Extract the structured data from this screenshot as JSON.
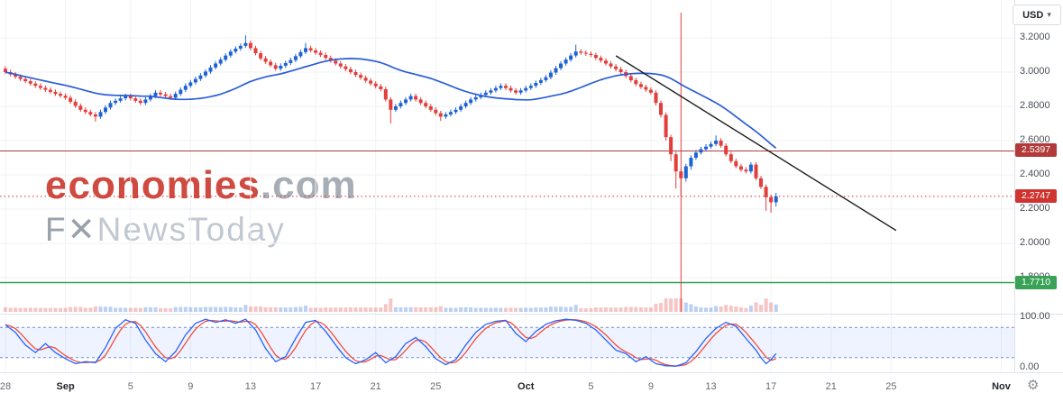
{
  "toolbar": {
    "currency_label": "USD",
    "caret_glyph": "▾",
    "settings_glyph": "⚙"
  },
  "watermark": {
    "brand": "economies",
    "domain": ".com",
    "tagline_f": "F",
    "tagline_x": "✕",
    "tagline_rest": "NewsToday"
  },
  "chart_data": {
    "type": "candlestick",
    "ylim": [
      1.6,
      3.42
    ],
    "grid": true,
    "colors": {
      "up": "#1e63d4",
      "down": "#e23e3c",
      "ma": "#2b5dd7",
      "trend": "#1c1c1c",
      "grid": "#eff2f6"
    },
    "price_ticks": [
      {
        "label": "3.2000",
        "price": 3.2
      },
      {
        "label": "3.0000",
        "price": 3.0
      },
      {
        "label": "2.8000",
        "price": 2.8
      },
      {
        "label": "2.6000",
        "price": 2.6
      },
      {
        "label": "2.4000",
        "price": 2.4
      },
      {
        "label": "2.2000",
        "price": 2.2
      },
      {
        "label": "2.0000",
        "price": 2.0
      },
      {
        "label": "1.8000",
        "price": 1.8
      }
    ],
    "time_ticks": [
      {
        "label": "28",
        "i": 0,
        "strong": false
      },
      {
        "label": "Sep",
        "i": 12,
        "strong": true
      },
      {
        "label": "5",
        "i": 25,
        "strong": false
      },
      {
        "label": "9",
        "i": 37,
        "strong": false
      },
      {
        "label": "13",
        "i": 49,
        "strong": false
      },
      {
        "label": "17",
        "i": 62,
        "strong": false
      },
      {
        "label": "21",
        "i": 74,
        "strong": false
      },
      {
        "label": "25",
        "i": 86,
        "strong": false
      },
      {
        "label": "Oct",
        "i": 104,
        "strong": true
      },
      {
        "label": "5",
        "i": 117,
        "strong": false
      },
      {
        "label": "9",
        "i": 129,
        "strong": false
      },
      {
        "label": "13",
        "i": 141,
        "strong": false
      },
      {
        "label": "17",
        "i": 153,
        "strong": false
      },
      {
        "label": "21",
        "i": 165,
        "strong": false
      },
      {
        "label": "25",
        "i": 177,
        "strong": false
      },
      {
        "label": "Nov",
        "i": 199,
        "strong": true
      }
    ],
    "horizontal_lines": [
      {
        "label": "2.5397",
        "price": 2.5397,
        "style": "solid",
        "width": 1.1,
        "color": "#b23a3a",
        "badge": "#b23a3a"
      },
      {
        "label": "2.2747",
        "price": 2.2747,
        "style": "dotted",
        "width": 1.1,
        "color": "#d6453f",
        "badge": "#cf3430"
      },
      {
        "label": "1.7710",
        "price": 1.771,
        "style": "solid",
        "width": 1.6,
        "color": "#33a04e",
        "badge": "#3aa257"
      }
    ],
    "trendline": {
      "i1": 122,
      "p1": 3.095,
      "i2": 178,
      "p2": 2.075
    },
    "vertical_line": {
      "i": 135,
      "color": "#e23e3c"
    },
    "moving_average": {
      "period": 30
    },
    "candles": [
      [
        3.02,
        3.034,
        2.988,
        3.0
      ],
      [
        3.0,
        3.014,
        2.975,
        2.987
      ],
      [
        2.987,
        3.001,
        2.961,
        2.973
      ],
      [
        2.973,
        2.987,
        2.948,
        2.96
      ],
      [
        2.96,
        2.974,
        2.935,
        2.947
      ],
      [
        2.947,
        2.961,
        2.921,
        2.933
      ],
      [
        2.933,
        2.947,
        2.908,
        2.92
      ],
      [
        2.92,
        2.934,
        2.896,
        2.908
      ],
      [
        2.908,
        2.922,
        2.885,
        2.897
      ],
      [
        2.897,
        2.911,
        2.873,
        2.885
      ],
      [
        2.885,
        2.899,
        2.861,
        2.873
      ],
      [
        2.873,
        2.887,
        2.85,
        2.862
      ],
      [
        2.862,
        2.876,
        2.838,
        2.85
      ],
      [
        2.85,
        2.864,
        2.815,
        2.827
      ],
      [
        2.827,
        2.841,
        2.791,
        2.803
      ],
      [
        2.803,
        2.817,
        2.768,
        2.78
      ],
      [
        2.78,
        2.794,
        2.755,
        2.767
      ],
      [
        2.767,
        2.781,
        2.741,
        2.753
      ],
      [
        2.753,
        2.767,
        2.71,
        2.74
      ],
      [
        2.74,
        2.781,
        2.728,
        2.767
      ],
      [
        2.767,
        2.807,
        2.755,
        2.793
      ],
      [
        2.793,
        2.834,
        2.781,
        2.82
      ],
      [
        2.82,
        2.847,
        2.808,
        2.833
      ],
      [
        2.833,
        2.861,
        2.821,
        2.847
      ],
      [
        2.847,
        2.874,
        2.835,
        2.86
      ],
      [
        2.86,
        2.874,
        2.835,
        2.847
      ],
      [
        2.847,
        2.861,
        2.821,
        2.833
      ],
      [
        2.833,
        2.847,
        2.808,
        2.82
      ],
      [
        2.82,
        2.854,
        2.808,
        2.84
      ],
      [
        2.84,
        2.874,
        2.828,
        2.86
      ],
      [
        2.86,
        2.894,
        2.848,
        2.88
      ],
      [
        2.88,
        2.894,
        2.858,
        2.87
      ],
      [
        2.87,
        2.884,
        2.848,
        2.86
      ],
      [
        2.86,
        2.874,
        2.838,
        2.85
      ],
      [
        2.85,
        2.887,
        2.838,
        2.873
      ],
      [
        2.873,
        2.911,
        2.861,
        2.897
      ],
      [
        2.897,
        2.934,
        2.885,
        2.92
      ],
      [
        2.92,
        2.954,
        2.908,
        2.94
      ],
      [
        2.94,
        2.974,
        2.928,
        2.96
      ],
      [
        2.96,
        2.994,
        2.948,
        2.98
      ],
      [
        2.98,
        3.017,
        2.968,
        3.003
      ],
      [
        3.003,
        3.041,
        2.991,
        3.027
      ],
      [
        3.027,
        3.064,
        3.015,
        3.05
      ],
      [
        3.05,
        3.087,
        3.038,
        3.073
      ],
      [
        3.073,
        3.111,
        3.061,
        3.097
      ],
      [
        3.097,
        3.134,
        3.085,
        3.12
      ],
      [
        3.12,
        3.151,
        3.108,
        3.137
      ],
      [
        3.137,
        3.167,
        3.125,
        3.153
      ],
      [
        3.153,
        3.215,
        3.141,
        3.17
      ],
      [
        3.17,
        3.184,
        3.128,
        3.14
      ],
      [
        3.14,
        3.154,
        3.098,
        3.11
      ],
      [
        3.11,
        3.124,
        3.068,
        3.08
      ],
      [
        3.08,
        3.094,
        3.048,
        3.06
      ],
      [
        3.06,
        3.074,
        3.028,
        3.04
      ],
      [
        3.04,
        3.054,
        3.008,
        3.02
      ],
      [
        3.02,
        3.051,
        3.008,
        3.037
      ],
      [
        3.037,
        3.067,
        3.025,
        3.053
      ],
      [
        3.053,
        3.084,
        3.041,
        3.07
      ],
      [
        3.07,
        3.107,
        3.058,
        3.093
      ],
      [
        3.093,
        3.131,
        3.081,
        3.117
      ],
      [
        3.117,
        3.17,
        3.105,
        3.14
      ],
      [
        3.14,
        3.154,
        3.115,
        3.127
      ],
      [
        3.127,
        3.141,
        3.101,
        3.113
      ],
      [
        3.113,
        3.127,
        3.088,
        3.1
      ],
      [
        3.1,
        3.114,
        3.071,
        3.083
      ],
      [
        3.083,
        3.097,
        3.055,
        3.067
      ],
      [
        3.067,
        3.081,
        3.038,
        3.05
      ],
      [
        3.05,
        3.064,
        3.021,
        3.033
      ],
      [
        3.033,
        3.047,
        3.005,
        3.017
      ],
      [
        3.017,
        3.031,
        2.988,
        3.0
      ],
      [
        3.0,
        3.014,
        2.971,
        2.983
      ],
      [
        2.983,
        2.997,
        2.955,
        2.967
      ],
      [
        2.967,
        2.981,
        2.938,
        2.95
      ],
      [
        2.95,
        2.964,
        2.921,
        2.933
      ],
      [
        2.933,
        2.947,
        2.905,
        2.917
      ],
      [
        2.917,
        2.931,
        2.888,
        2.9
      ],
      [
        2.9,
        2.914,
        2.828,
        2.84
      ],
      [
        2.84,
        2.854,
        2.7,
        2.78
      ],
      [
        2.78,
        2.814,
        2.768,
        2.8
      ],
      [
        2.8,
        2.834,
        2.788,
        2.82
      ],
      [
        2.82,
        2.854,
        2.808,
        2.84
      ],
      [
        2.84,
        2.874,
        2.828,
        2.86
      ],
      [
        2.86,
        2.874,
        2.828,
        2.84
      ],
      [
        2.84,
        2.854,
        2.808,
        2.82
      ],
      [
        2.82,
        2.834,
        2.788,
        2.8
      ],
      [
        2.8,
        2.814,
        2.768,
        2.78
      ],
      [
        2.78,
        2.794,
        2.748,
        2.76
      ],
      [
        2.76,
        2.774,
        2.715,
        2.74
      ],
      [
        2.74,
        2.767,
        2.728,
        2.753
      ],
      [
        2.753,
        2.781,
        2.741,
        2.767
      ],
      [
        2.767,
        2.794,
        2.755,
        2.78
      ],
      [
        2.78,
        2.814,
        2.768,
        2.8
      ],
      [
        2.8,
        2.834,
        2.788,
        2.82
      ],
      [
        2.82,
        2.854,
        2.808,
        2.84
      ],
      [
        2.84,
        2.867,
        2.828,
        2.853
      ],
      [
        2.853,
        2.881,
        2.841,
        2.867
      ],
      [
        2.867,
        2.894,
        2.855,
        2.88
      ],
      [
        2.88,
        2.907,
        2.868,
        2.893
      ],
      [
        2.893,
        2.921,
        2.881,
        2.907
      ],
      [
        2.907,
        2.934,
        2.895,
        2.92
      ],
      [
        2.92,
        2.934,
        2.895,
        2.907
      ],
      [
        2.907,
        2.921,
        2.881,
        2.893
      ],
      [
        2.893,
        2.907,
        2.868,
        2.88
      ],
      [
        2.88,
        2.907,
        2.868,
        2.893
      ],
      [
        2.893,
        2.921,
        2.881,
        2.907
      ],
      [
        2.907,
        2.934,
        2.895,
        2.92
      ],
      [
        2.92,
        2.951,
        2.908,
        2.937
      ],
      [
        2.937,
        2.967,
        2.925,
        2.953
      ],
      [
        2.953,
        2.984,
        2.941,
        2.97
      ],
      [
        2.97,
        3.011,
        2.958,
        2.997
      ],
      [
        2.997,
        3.037,
        2.985,
        3.023
      ],
      [
        3.023,
        3.064,
        3.011,
        3.05
      ],
      [
        3.05,
        3.087,
        3.038,
        3.073
      ],
      [
        3.073,
        3.111,
        3.061,
        3.097
      ],
      [
        3.097,
        3.16,
        3.085,
        3.12
      ],
      [
        3.12,
        3.134,
        3.101,
        3.113
      ],
      [
        3.113,
        3.127,
        3.095,
        3.107
      ],
      [
        3.107,
        3.121,
        3.088,
        3.1
      ],
      [
        3.1,
        3.114,
        3.071,
        3.083
      ],
      [
        3.083,
        3.097,
        3.055,
        3.067
      ],
      [
        3.067,
        3.081,
        3.038,
        3.05
      ],
      [
        3.05,
        3.064,
        3.021,
        3.033
      ],
      [
        3.033,
        3.047,
        3.005,
        3.017
      ],
      [
        3.017,
        3.031,
        2.988,
        3.0
      ],
      [
        3.0,
        3.014,
        2.965,
        2.977
      ],
      [
        2.977,
        2.991,
        2.941,
        2.953
      ],
      [
        2.953,
        2.967,
        2.918,
        2.93
      ],
      [
        2.93,
        2.944,
        2.901,
        2.913
      ],
      [
        2.913,
        2.927,
        2.885,
        2.897
      ],
      [
        2.897,
        2.911,
        2.868,
        2.88
      ],
      [
        2.88,
        2.894,
        2.805,
        2.82
      ],
      [
        2.82,
        2.834,
        2.735,
        2.75
      ],
      [
        2.75,
        2.764,
        2.6,
        2.62
      ],
      [
        2.62,
        2.634,
        2.48,
        2.52
      ],
      [
        2.52,
        2.534,
        2.32,
        2.42
      ],
      [
        2.42,
        2.434,
        2.28,
        2.38
      ],
      [
        2.38,
        2.464,
        2.36,
        2.45
      ],
      [
        2.45,
        2.514,
        2.43,
        2.5
      ],
      [
        2.5,
        2.544,
        2.488,
        2.53
      ],
      [
        2.53,
        2.564,
        2.518,
        2.55
      ],
      [
        2.55,
        2.579,
        2.538,
        2.565
      ],
      [
        2.565,
        2.594,
        2.553,
        2.58
      ],
      [
        2.58,
        2.63,
        2.568,
        2.6
      ],
      [
        2.6,
        2.614,
        2.558,
        2.57
      ],
      [
        2.57,
        2.584,
        2.508,
        2.52
      ],
      [
        2.52,
        2.534,
        2.468,
        2.48
      ],
      [
        2.48,
        2.494,
        2.438,
        2.45
      ],
      [
        2.45,
        2.464,
        2.418,
        2.43
      ],
      [
        2.43,
        2.444,
        2.408,
        2.42
      ],
      [
        2.42,
        2.474,
        2.408,
        2.46
      ],
      [
        2.46,
        2.474,
        2.368,
        2.38
      ],
      [
        2.38,
        2.394,
        2.318,
        2.33
      ],
      [
        2.33,
        2.344,
        2.19,
        2.27
      ],
      [
        2.27,
        2.284,
        2.18,
        2.24
      ],
      [
        2.24,
        2.295,
        2.215,
        2.2747
      ]
    ],
    "oscillator": {
      "type": "stochastic",
      "range": [
        0,
        100
      ],
      "levels": [
        80,
        20
      ],
      "axis_top_label": "100.00",
      "axis_bottom_label": "0.00",
      "colors": {
        "k": "#2962ff",
        "d": "#f24e3a",
        "band": "rgba(41,98,255,0.08)",
        "level": "#6b8fd4"
      },
      "k_points": [
        [
          0,
          85
        ],
        [
          2,
          70
        ],
        [
          4,
          45
        ],
        [
          6,
          30
        ],
        [
          8,
          48
        ],
        [
          10,
          30
        ],
        [
          12,
          18
        ],
        [
          14,
          8
        ],
        [
          16,
          12
        ],
        [
          18,
          10
        ],
        [
          20,
          40
        ],
        [
          22,
          78
        ],
        [
          24,
          95
        ],
        [
          26,
          88
        ],
        [
          28,
          55
        ],
        [
          30,
          28
        ],
        [
          32,
          12
        ],
        [
          34,
          32
        ],
        [
          36,
          65
        ],
        [
          38,
          88
        ],
        [
          40,
          96
        ],
        [
          42,
          90
        ],
        [
          44,
          95
        ],
        [
          46,
          88
        ],
        [
          48,
          96
        ],
        [
          50,
          75
        ],
        [
          52,
          38
        ],
        [
          54,
          12
        ],
        [
          56,
          22
        ],
        [
          58,
          58
        ],
        [
          60,
          90
        ],
        [
          62,
          94
        ],
        [
          64,
          72
        ],
        [
          66,
          45
        ],
        [
          68,
          20
        ],
        [
          70,
          8
        ],
        [
          72,
          16
        ],
        [
          74,
          30
        ],
        [
          76,
          10
        ],
        [
          78,
          22
        ],
        [
          80,
          48
        ],
        [
          82,
          60
        ],
        [
          84,
          42
        ],
        [
          86,
          18
        ],
        [
          88,
          6
        ],
        [
          90,
          16
        ],
        [
          92,
          45
        ],
        [
          94,
          70
        ],
        [
          96,
          86
        ],
        [
          98,
          92
        ],
        [
          100,
          94
        ],
        [
          102,
          68
        ],
        [
          104,
          52
        ],
        [
          106,
          72
        ],
        [
          108,
          86
        ],
        [
          110,
          93
        ],
        [
          112,
          96
        ],
        [
          114,
          94
        ],
        [
          116,
          88
        ],
        [
          118,
          75
        ],
        [
          120,
          55
        ],
        [
          122,
          35
        ],
        [
          124,
          28
        ],
        [
          126,
          12
        ],
        [
          128,
          22
        ],
        [
          130,
          8
        ],
        [
          132,
          4
        ],
        [
          134,
          3
        ],
        [
          136,
          10
        ],
        [
          138,
          32
        ],
        [
          140,
          58
        ],
        [
          142,
          78
        ],
        [
          144,
          90
        ],
        [
          146,
          82
        ],
        [
          148,
          58
        ],
        [
          150,
          35
        ],
        [
          151,
          20
        ],
        [
          152,
          8
        ],
        [
          153,
          16
        ],
        [
          154,
          28
        ]
      ]
    }
  }
}
